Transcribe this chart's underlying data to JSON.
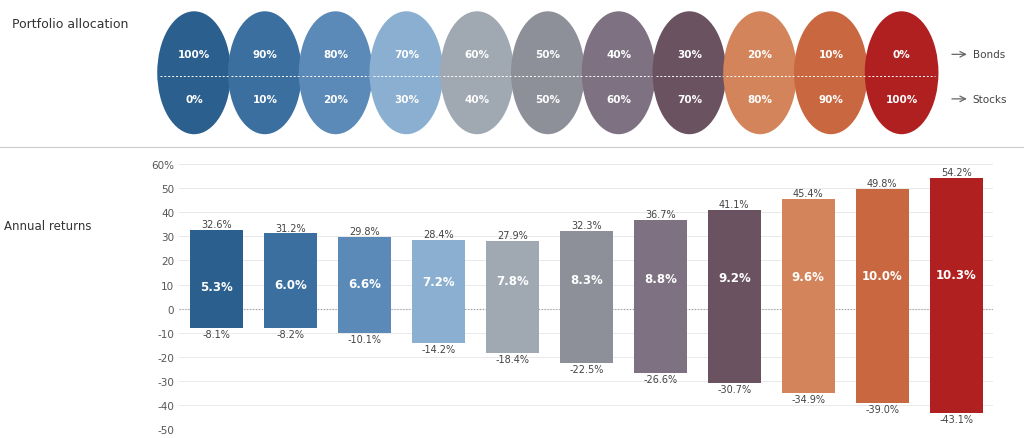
{
  "title_top": "Portfolio allocation",
  "title_bottom": "Annual returns",
  "allocations": [
    {
      "bonds": "100%",
      "stocks": "0%",
      "color": "#2b5f8e"
    },
    {
      "bonds": "90%",
      "stocks": "10%",
      "color": "#3a6fa0"
    },
    {
      "bonds": "80%",
      "stocks": "20%",
      "color": "#5b8ab8"
    },
    {
      "bonds": "70%",
      "stocks": "30%",
      "color": "#8aafd0"
    },
    {
      "bonds": "60%",
      "stocks": "40%",
      "color": "#a0a8b2"
    },
    {
      "bonds": "50%",
      "stocks": "50%",
      "color": "#8e9099"
    },
    {
      "bonds": "40%",
      "stocks": "60%",
      "color": "#7e7282"
    },
    {
      "bonds": "30%",
      "stocks": "70%",
      "color": "#6b5260"
    },
    {
      "bonds": "20%",
      "stocks": "80%",
      "color": "#d4845a"
    },
    {
      "bonds": "10%",
      "stocks": "90%",
      "color": "#c96840"
    },
    {
      "bonds": "0%",
      "stocks": "100%",
      "color": "#b02020"
    }
  ],
  "bars": [
    {
      "best": 32.6,
      "avg": 5.3,
      "worst": -8.1,
      "color": "#2b5f8e"
    },
    {
      "best": 31.2,
      "avg": 6.0,
      "worst": -8.2,
      "color": "#3a6fa0"
    },
    {
      "best": 29.8,
      "avg": 6.6,
      "worst": -10.1,
      "color": "#5b8ab8"
    },
    {
      "best": 28.4,
      "avg": 7.2,
      "worst": -14.2,
      "color": "#8aafd0"
    },
    {
      "best": 27.9,
      "avg": 7.8,
      "worst": -18.4,
      "color": "#a0a8b2"
    },
    {
      "best": 32.3,
      "avg": 8.3,
      "worst": -22.5,
      "color": "#8e9099"
    },
    {
      "best": 36.7,
      "avg": 8.8,
      "worst": -26.6,
      "color": "#7e7282"
    },
    {
      "best": 41.1,
      "avg": 9.2,
      "worst": -30.7,
      "color": "#6b5260"
    },
    {
      "best": 45.4,
      "avg": 9.6,
      "worst": -34.9,
      "color": "#d4845a"
    },
    {
      "best": 49.8,
      "avg": 10.0,
      "worst": -39.0,
      "color": "#c96840"
    },
    {
      "best": 54.2,
      "avg": 10.3,
      "worst": -43.1,
      "color": "#b02020"
    }
  ],
  "ylim": [
    -50,
    62
  ],
  "yticks": [
    -50,
    -40,
    -30,
    -20,
    -10,
    0,
    10,
    20,
    30,
    40,
    50,
    60
  ]
}
